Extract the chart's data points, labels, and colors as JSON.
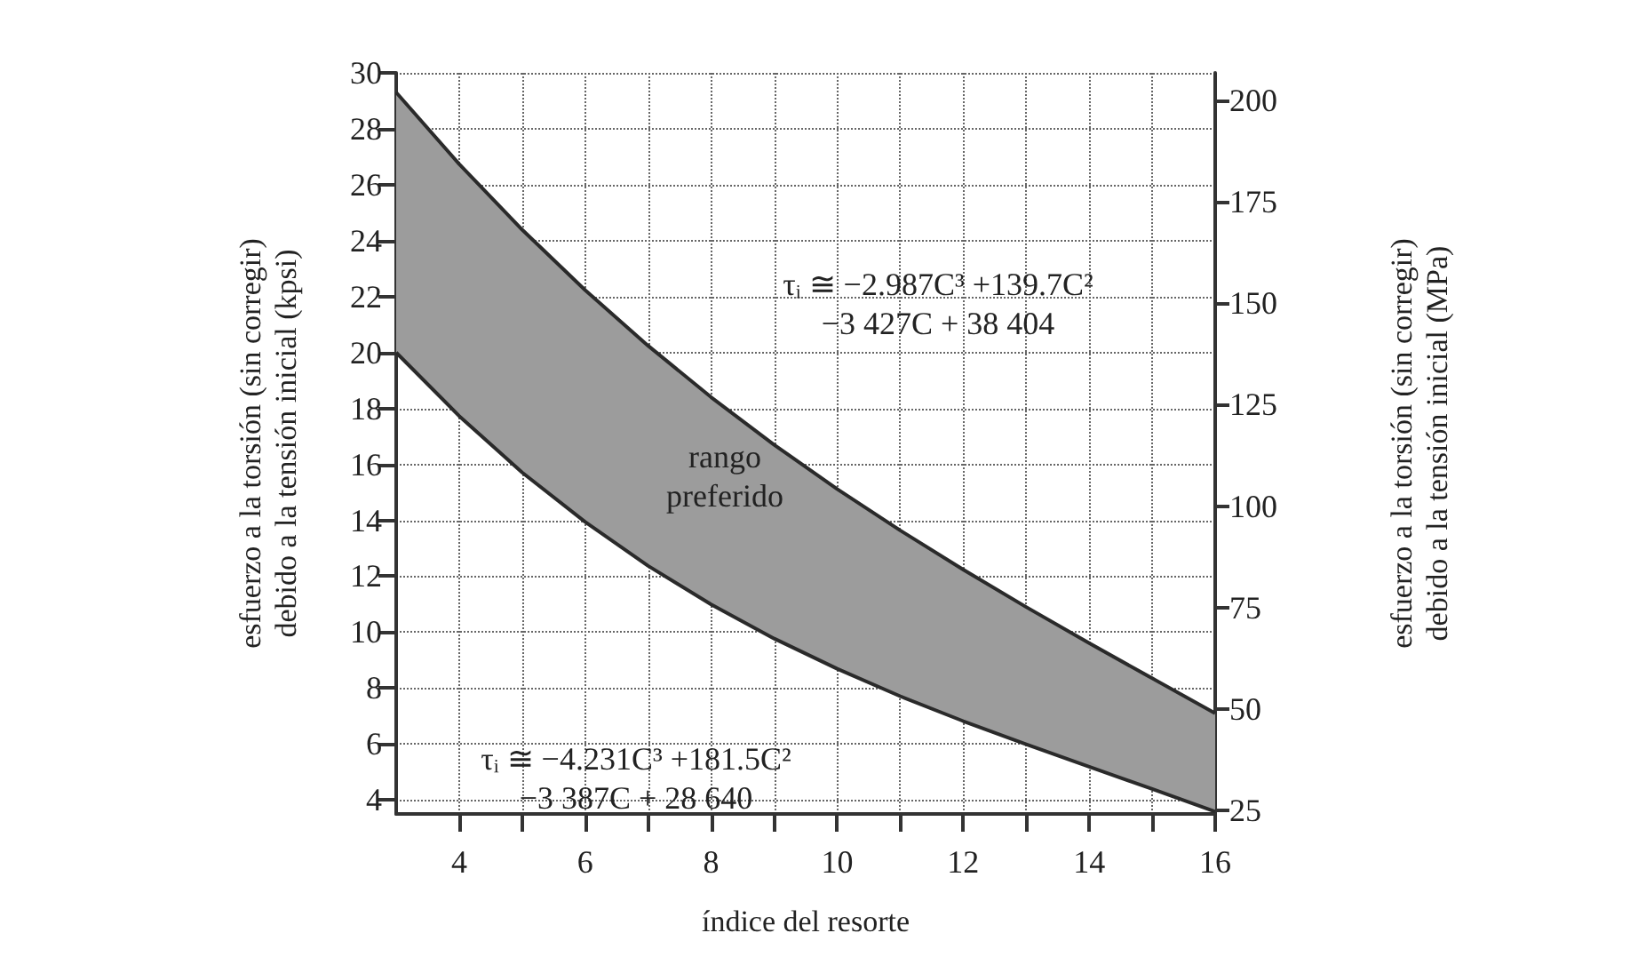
{
  "chart_data": {
    "type": "line",
    "xlabel": "índice del resorte",
    "ylabel": "esfuerzo a la torsión (sin corregir)\ndebido a la tensión inicial (kpsi)",
    "y2label": "esfuerzo a la torsión (sin corregir)\ndebido a la tensión inicial (MPa)",
    "x": [
      3,
      4,
      5,
      6,
      7,
      8,
      9,
      10,
      11,
      12,
      13,
      14,
      15,
      16
    ],
    "series": [
      {
        "type": "area",
        "color": "#9c9c9c",
        "values": [
          29.3,
          26.74,
          24.39,
          22.23,
          20.24,
          18.4,
          16.7,
          15.12,
          13.64,
          12.24,
          10.9,
          9.61,
          8.35,
          7.1
        ]
      },
      {
        "color": "#2a2a2a",
        "values": [
          20.0,
          17.73,
          15.71,
          13.94,
          12.37,
          10.99,
          9.77,
          8.69,
          7.71,
          6.82,
          5.99,
          5.19,
          4.39,
          3.58
        ]
      }
    ],
    "xlim": [
      3,
      16
    ],
    "xticks": [
      4,
      {
        "value": 5,
        "label": null
      },
      6,
      {
        "value": 7,
        "label": null
      },
      8,
      {
        "value": 9,
        "label": null
      },
      10,
      {
        "value": 11,
        "label": null
      },
      12,
      {
        "value": 13,
        "label": null
      },
      14,
      {
        "value": 15,
        "label": null
      },
      16
    ],
    "ylim": [
      3.5,
      30
    ],
    "yticks": [
      4,
      6,
      8,
      10,
      12,
      14,
      16,
      18,
      20,
      22,
      24,
      26,
      28,
      30
    ],
    "y2lim": [
      24.1,
      206.8
    ],
    "y2ticks": [
      25,
      50,
      75,
      100,
      125,
      150,
      175,
      200
    ],
    "grid": true,
    "annotations": [
      "rango\npreferido",
      "τᵢ ≅ −2.987C³ +139.7C²\n−3 427C + 38 404",
      "τᵢ ≅ −4.231C³ +181.5C²\n−3 387C + 28 640"
    ]
  }
}
